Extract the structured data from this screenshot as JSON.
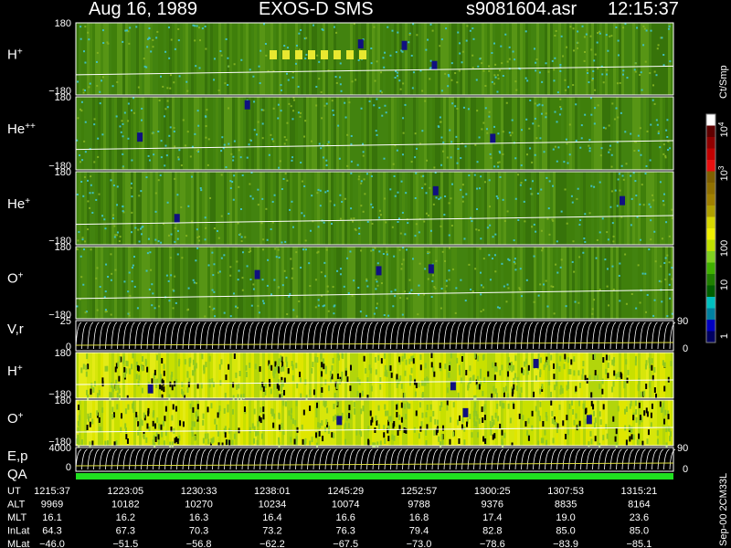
{
  "header": {
    "date": "Aug 16, 1989",
    "instrument": "EXOS-D SMS",
    "file": "s9081604.asr",
    "time": "12:15:37"
  },
  "panels": [
    {
      "label": "H",
      "sup": "+",
      "top": "180",
      "bottom": "−180"
    },
    {
      "label": "He",
      "sup": "++",
      "top": "180",
      "bottom": "−180"
    },
    {
      "label": "He",
      "sup": "+",
      "top": "180",
      "bottom": "−180"
    },
    {
      "label": "O",
      "sup": "+",
      "top": "180",
      "bottom": "−180"
    },
    {
      "label": "V,r",
      "top": "25",
      "bottom": "0",
      "right_top": "90",
      "right_bottom": "0"
    },
    {
      "label": "H",
      "sup": "+",
      "top": "180",
      "bottom": "−180"
    },
    {
      "label": "O",
      "sup": "+",
      "top": "180",
      "bottom": "−180"
    },
    {
      "label": "E,p",
      "label2": "QA",
      "top": "4000",
      "bottom": "0",
      "right_top": "90",
      "right_bottom": "0"
    }
  ],
  "colorbar": {
    "unit": "Ct/Smp",
    "ticks": [
      {
        "base": "10",
        "sup": "4"
      },
      {
        "base": "10",
        "sup": "3"
      },
      {
        "base": "100"
      },
      {
        "base": "10"
      },
      {
        "base": "1"
      }
    ]
  },
  "table": {
    "rows": [
      {
        "label": "UT",
        "cells": [
          "1215:37",
          "1223:05",
          "1230:33",
          "1238:01",
          "1245:29",
          "1252:57",
          "1300:25",
          "1307:53",
          "1315:21"
        ]
      },
      {
        "label": "ALT",
        "cells": [
          "9969",
          "10182",
          "10270",
          "10234",
          "10074",
          "9788",
          "9376",
          "8835",
          "8164"
        ]
      },
      {
        "label": "MLT",
        "cells": [
          "16.1",
          "16.2",
          "16.3",
          "16.4",
          "16.6",
          "16.8",
          "17.4",
          "19.0",
          "23.6"
        ]
      },
      {
        "label": "InLat",
        "cells": [
          "64.3",
          "67.3",
          "70.3",
          "73.2",
          "76.3",
          "79.4",
          "82.8",
          "85.0",
          "85.0"
        ]
      },
      {
        "label": "MLat",
        "cells": [
          "−46.0",
          "−51.5",
          "−56.8",
          "−62.2",
          "−67.5",
          "−73.0",
          "−78.6",
          "−83.9",
          "−85.1"
        ]
      }
    ]
  },
  "footer": "Sep-00 2CM33L"
}
